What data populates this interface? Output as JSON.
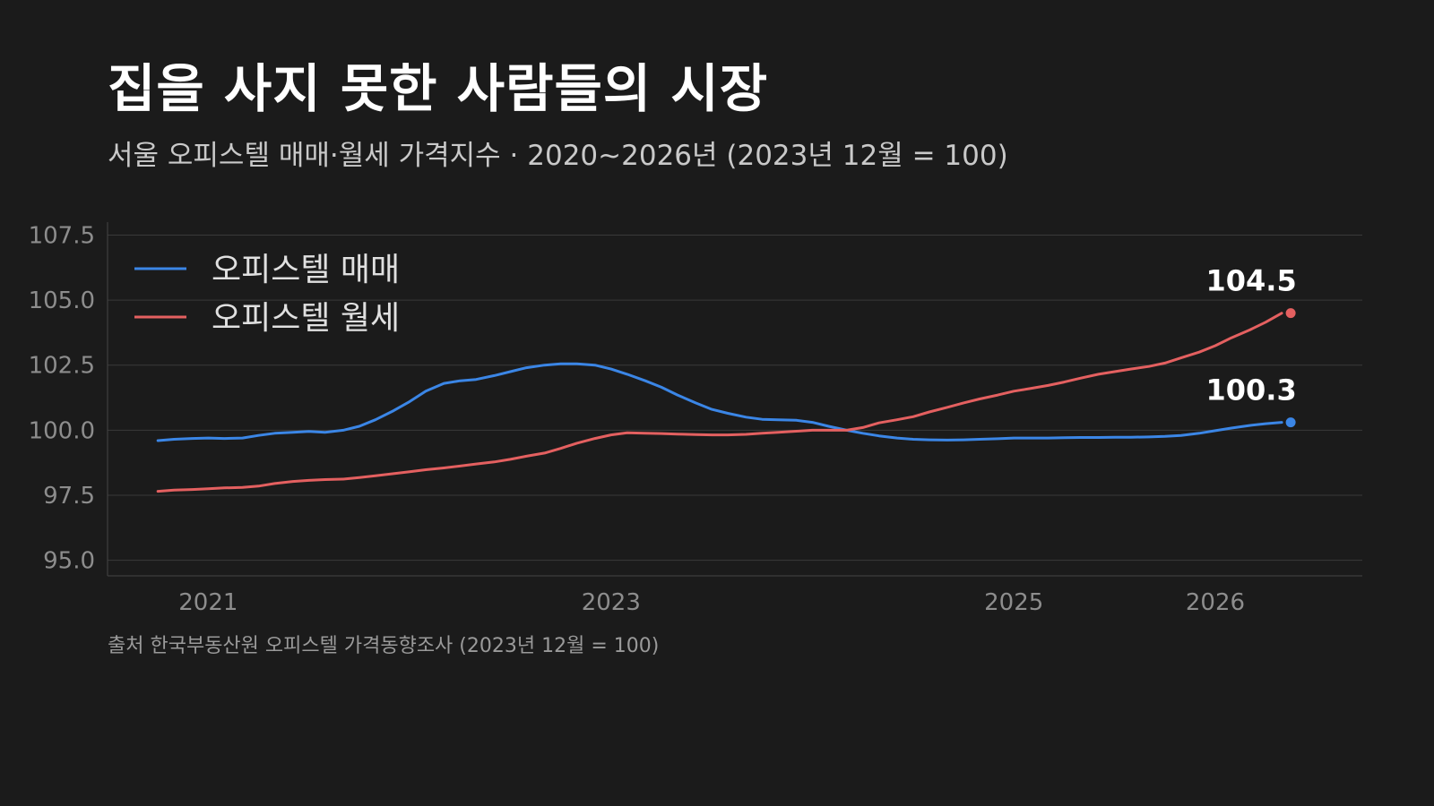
{
  "title": "집을 사지 못한 사람들의 시장",
  "subtitle": "서울 오피스텔 매매·월세 가격지수 · 2020~2026년 (2023년 12월 = 100)",
  "source": "출처 한국부동산원 오피스텔 가격동향조사 (2023년 12월 = 100)",
  "colors": {
    "background": "#1b1b1b",
    "sale": "#3b86e6",
    "rent": "#e46060",
    "grid": "#3a3a3a"
  },
  "chart_data": {
    "type": "line",
    "x_unit": "year",
    "xlim": [
      2020.5,
      2026.73
    ],
    "ylim": [
      94.4,
      108.0
    ],
    "yticks": [
      95.0,
      97.5,
      100.0,
      102.5,
      105.0,
      107.5
    ],
    "ytick_labels": [
      "95.0",
      "97.5",
      "100.0",
      "102.5",
      "105.0",
      "107.5"
    ],
    "xticks": [
      2021,
      2023,
      2025,
      2026
    ],
    "xtick_labels": [
      "2021",
      "2023",
      "2025",
      "2026"
    ],
    "grid": true,
    "legend_position": "top-left",
    "series": [
      {
        "name": "오피스텔 매매",
        "color": "#3b86e6",
        "end_label": "100.3",
        "points": [
          [
            2020.75,
            99.6
          ],
          [
            2020.83,
            99.65
          ],
          [
            2020.92,
            99.68
          ],
          [
            2021.0,
            99.7
          ],
          [
            2021.08,
            99.68
          ],
          [
            2021.17,
            99.7
          ],
          [
            2021.25,
            99.8
          ],
          [
            2021.33,
            99.88
          ],
          [
            2021.42,
            99.92
          ],
          [
            2021.5,
            99.95
          ],
          [
            2021.58,
            99.92
          ],
          [
            2021.67,
            100.0
          ],
          [
            2021.75,
            100.15
          ],
          [
            2021.83,
            100.4
          ],
          [
            2021.92,
            100.75
          ],
          [
            2022.0,
            101.1
          ],
          [
            2022.08,
            101.5
          ],
          [
            2022.17,
            101.8
          ],
          [
            2022.25,
            101.9
          ],
          [
            2022.33,
            101.95
          ],
          [
            2022.42,
            102.1
          ],
          [
            2022.5,
            102.25
          ],
          [
            2022.58,
            102.4
          ],
          [
            2022.67,
            102.5
          ],
          [
            2022.75,
            102.55
          ],
          [
            2022.83,
            102.55
          ],
          [
            2022.92,
            102.5
          ],
          [
            2023.0,
            102.35
          ],
          [
            2023.08,
            102.15
          ],
          [
            2023.17,
            101.9
          ],
          [
            2023.25,
            101.65
          ],
          [
            2023.33,
            101.35
          ],
          [
            2023.42,
            101.05
          ],
          [
            2023.5,
            100.8
          ],
          [
            2023.58,
            100.65
          ],
          [
            2023.67,
            100.5
          ],
          [
            2023.75,
            100.42
          ],
          [
            2023.83,
            100.4
          ],
          [
            2023.92,
            100.38
          ],
          [
            2024.0,
            100.3
          ],
          [
            2024.08,
            100.15
          ],
          [
            2024.17,
            100.0
          ],
          [
            2024.25,
            99.88
          ],
          [
            2024.33,
            99.78
          ],
          [
            2024.42,
            99.7
          ],
          [
            2024.5,
            99.65
          ],
          [
            2024.58,
            99.63
          ],
          [
            2024.67,
            99.62
          ],
          [
            2024.75,
            99.63
          ],
          [
            2024.83,
            99.65
          ],
          [
            2024.92,
            99.67
          ],
          [
            2025.0,
            99.7
          ],
          [
            2025.08,
            99.7
          ],
          [
            2025.17,
            99.7
          ],
          [
            2025.25,
            99.71
          ],
          [
            2025.33,
            99.72
          ],
          [
            2025.42,
            99.72
          ],
          [
            2025.5,
            99.73
          ],
          [
            2025.58,
            99.73
          ],
          [
            2025.67,
            99.74
          ],
          [
            2025.75,
            99.76
          ],
          [
            2025.83,
            99.8
          ],
          [
            2025.92,
            99.88
          ],
          [
            2026.0,
            99.98
          ],
          [
            2026.08,
            100.08
          ],
          [
            2026.17,
            100.18
          ],
          [
            2026.25,
            100.25
          ],
          [
            2026.33,
            100.3
          ]
        ]
      },
      {
        "name": "오피스텔 월세",
        "color": "#e46060",
        "end_label": "104.5",
        "points": [
          [
            2020.75,
            97.65
          ],
          [
            2020.83,
            97.7
          ],
          [
            2020.92,
            97.72
          ],
          [
            2021.0,
            97.75
          ],
          [
            2021.08,
            97.78
          ],
          [
            2021.17,
            97.8
          ],
          [
            2021.25,
            97.85
          ],
          [
            2021.33,
            97.95
          ],
          [
            2021.42,
            98.03
          ],
          [
            2021.5,
            98.07
          ],
          [
            2021.58,
            98.1
          ],
          [
            2021.67,
            98.12
          ],
          [
            2021.75,
            98.18
          ],
          [
            2021.83,
            98.25
          ],
          [
            2021.92,
            98.33
          ],
          [
            2022.0,
            98.4
          ],
          [
            2022.08,
            98.48
          ],
          [
            2022.17,
            98.55
          ],
          [
            2022.25,
            98.62
          ],
          [
            2022.33,
            98.7
          ],
          [
            2022.42,
            98.78
          ],
          [
            2022.5,
            98.88
          ],
          [
            2022.58,
            99.0
          ],
          [
            2022.67,
            99.12
          ],
          [
            2022.75,
            99.3
          ],
          [
            2022.83,
            99.5
          ],
          [
            2022.92,
            99.68
          ],
          [
            2023.0,
            99.82
          ],
          [
            2023.08,
            99.9
          ],
          [
            2023.17,
            99.88
          ],
          [
            2023.25,
            99.87
          ],
          [
            2023.33,
            99.85
          ],
          [
            2023.42,
            99.83
          ],
          [
            2023.5,
            99.82
          ],
          [
            2023.58,
            99.82
          ],
          [
            2023.67,
            99.84
          ],
          [
            2023.75,
            99.88
          ],
          [
            2023.83,
            99.92
          ],
          [
            2023.92,
            99.96
          ],
          [
            2024.0,
            100.0
          ],
          [
            2024.08,
            100.0
          ],
          [
            2024.17,
            100.0
          ],
          [
            2024.25,
            100.1
          ],
          [
            2024.33,
            100.28
          ],
          [
            2024.42,
            100.4
          ],
          [
            2024.5,
            100.52
          ],
          [
            2024.58,
            100.7
          ],
          [
            2024.67,
            100.88
          ],
          [
            2024.75,
            101.05
          ],
          [
            2024.83,
            101.2
          ],
          [
            2024.92,
            101.35
          ],
          [
            2025.0,
            101.5
          ],
          [
            2025.08,
            101.6
          ],
          [
            2025.17,
            101.72
          ],
          [
            2025.25,
            101.85
          ],
          [
            2025.33,
            102.0
          ],
          [
            2025.42,
            102.15
          ],
          [
            2025.5,
            102.25
          ],
          [
            2025.58,
            102.35
          ],
          [
            2025.67,
            102.45
          ],
          [
            2025.75,
            102.58
          ],
          [
            2025.83,
            102.78
          ],
          [
            2025.92,
            103.0
          ],
          [
            2026.0,
            103.25
          ],
          [
            2026.08,
            103.55
          ],
          [
            2026.17,
            103.85
          ],
          [
            2026.25,
            104.15
          ],
          [
            2026.33,
            104.5
          ]
        ]
      }
    ]
  }
}
